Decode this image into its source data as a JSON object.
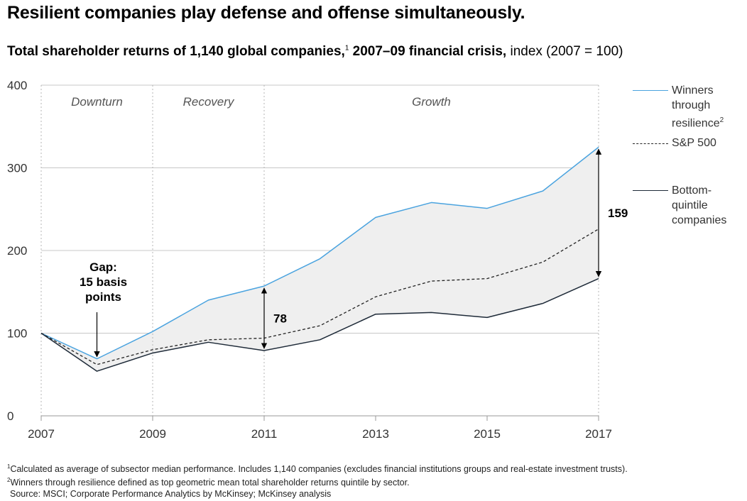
{
  "headline": "Resilient companies play defense and offense simultaneously.",
  "subtitle": {
    "bold": "Total shareholder returns of 1,140 global companies,",
    "sup": "1",
    "bold2": " 2007–09 financial crisis,",
    "normal": " index (2007 = 100)"
  },
  "footnotes": {
    "f1_sup": "1",
    "f1": "Calculated as average of subsector median performance. Includes 1,140 companies (excludes financial institutions groups and real-estate investment trusts).",
    "f2_sup": "2",
    "f2": "Winners through resilience defined as top geometric mean total shareholder returns quintile by sector.",
    "source": "Source: MSCI; Corporate Performance Analytics by McKinsey; McKinsey analysis"
  },
  "legend": {
    "winners": [
      "Winners",
      "through",
      "resilience"
    ],
    "winners_sup": "2",
    "sp500": "S&P 500",
    "bottom": [
      "Bottom-",
      "quintile",
      "companies"
    ]
  },
  "colors": {
    "winners": "#4aa3df",
    "sp500": "#222222",
    "bottom": "#1e2a38",
    "fill": "#efefef",
    "grid": "#c8c8c8"
  },
  "chart_data": {
    "type": "line",
    "x": [
      2007,
      2008,
      2009,
      2010,
      2011,
      2012,
      2013,
      2014,
      2015,
      2016,
      2017
    ],
    "x_ticks": [
      "2007",
      "2009",
      "2011",
      "2013",
      "2015",
      "2017"
    ],
    "y_ticks": [
      "0",
      "100",
      "200",
      "300",
      "400"
    ],
    "ylim": [
      0,
      400
    ],
    "series": [
      {
        "name": "Winners through resilience",
        "values": [
          100,
          69,
          102,
          140,
          157,
          190,
          240,
          258,
          251,
          272,
          325
        ]
      },
      {
        "name": "S&P 500",
        "values": [
          100,
          62,
          80,
          92,
          94,
          109,
          144,
          163,
          166,
          186,
          226
        ]
      },
      {
        "name": "Bottom-quintile companies",
        "values": [
          100,
          54,
          76,
          89,
          79,
          92,
          123,
          125,
          119,
          136,
          166
        ]
      }
    ],
    "phases": [
      {
        "label": "Downturn",
        "from": 2007,
        "to": 2009
      },
      {
        "label": "Recovery",
        "from": 2009,
        "to": 2011
      },
      {
        "label": "Growth",
        "from": 2011,
        "to": 2017
      }
    ],
    "annotations": [
      {
        "text": [
          "Gap:",
          "15 basis",
          "points"
        ],
        "x": 2008
      },
      {
        "text": "78",
        "x": 2011,
        "from": 79,
        "to": 157
      },
      {
        "text": "159",
        "x": 2017,
        "from": 166,
        "to": 325
      }
    ]
  }
}
